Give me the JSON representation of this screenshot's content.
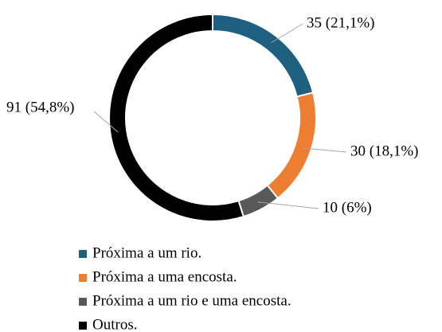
{
  "chart_data": {
    "type": "donut",
    "categories": [
      "Próxima a um rio.",
      "Próxima a uma encosta.",
      "Próxima a um rio e uma encosta.",
      "Outros."
    ],
    "values": [
      35,
      30,
      10,
      91
    ],
    "value_labels": [
      "35 (21,1%)",
      "30 (18,1%)",
      "10 (6%)",
      "91 (54,8%)"
    ],
    "colors": [
      "#1f5f80",
      "#ed7d31",
      "#595959",
      "#000000"
    ],
    "legend": "bottom"
  }
}
